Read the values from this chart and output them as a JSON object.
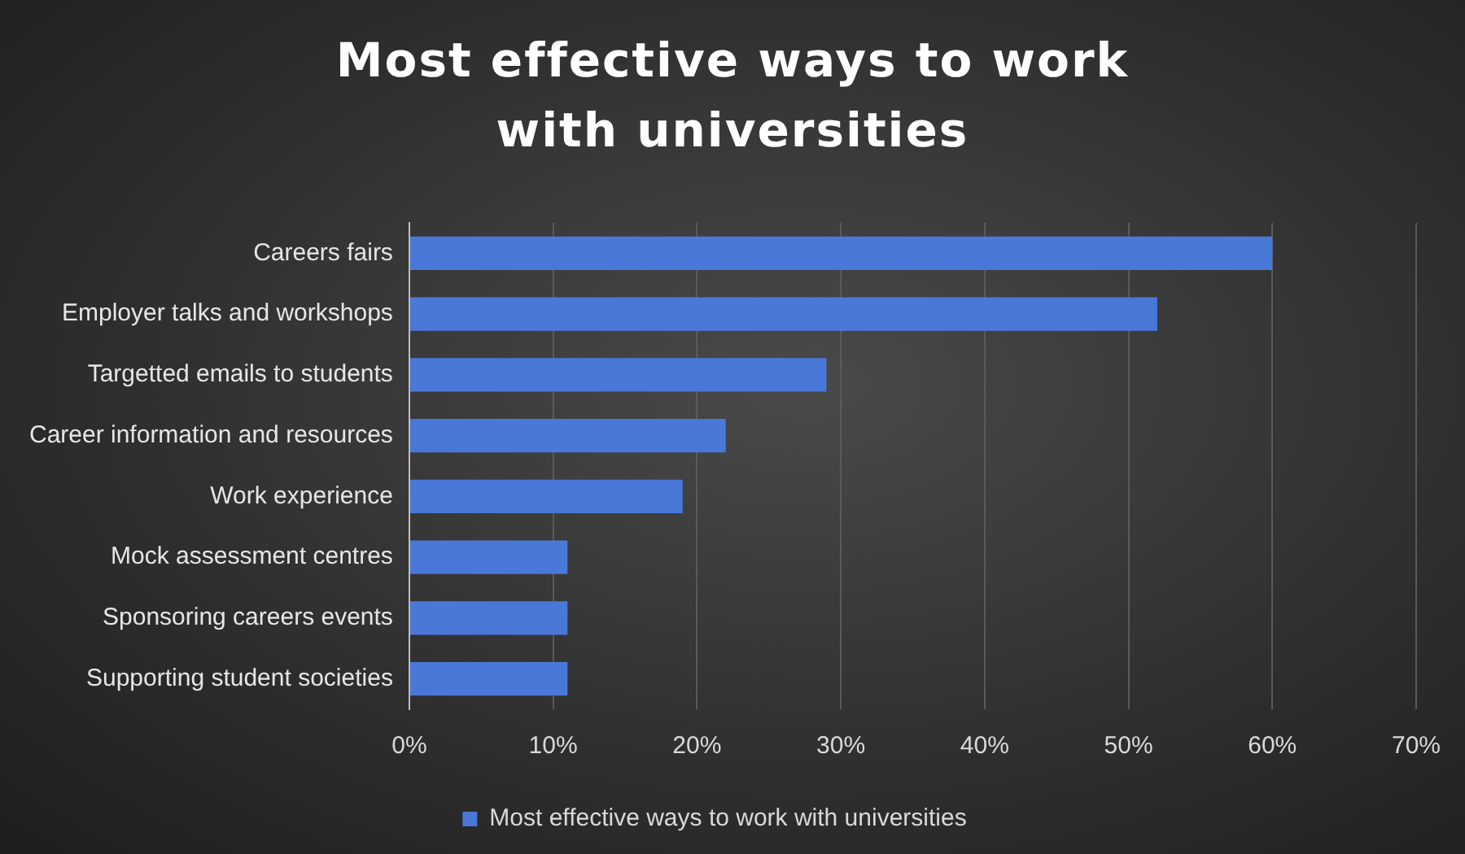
{
  "chart_data": {
    "type": "bar",
    "orientation": "horizontal",
    "title": "Most effective ways to work with universities",
    "categories": [
      "Careers fairs",
      "Employer talks and workshops",
      "Targetted emails to students",
      "Career information and resources",
      "Work experience",
      "Mock assessment centres",
      "Sponsoring careers events",
      "Supporting student societies"
    ],
    "series": [
      {
        "name": "Most effective ways to work with universities",
        "color": "#4a78d8",
        "values": [
          60,
          52,
          29,
          22,
          19,
          11,
          11,
          11
        ]
      }
    ],
    "xlim": [
      0,
      70
    ],
    "xticks": [
      {
        "value": 0,
        "label": "0%"
      },
      {
        "value": 10,
        "label": "10%"
      },
      {
        "value": 20,
        "label": "20%"
      },
      {
        "value": 30,
        "label": "30%"
      },
      {
        "value": 40,
        "label": "40%"
      },
      {
        "value": 50,
        "label": "50%"
      },
      {
        "value": 60,
        "label": "60%"
      },
      {
        "value": 70,
        "label": "70%"
      }
    ],
    "grid": "x",
    "legend": "bottom"
  }
}
